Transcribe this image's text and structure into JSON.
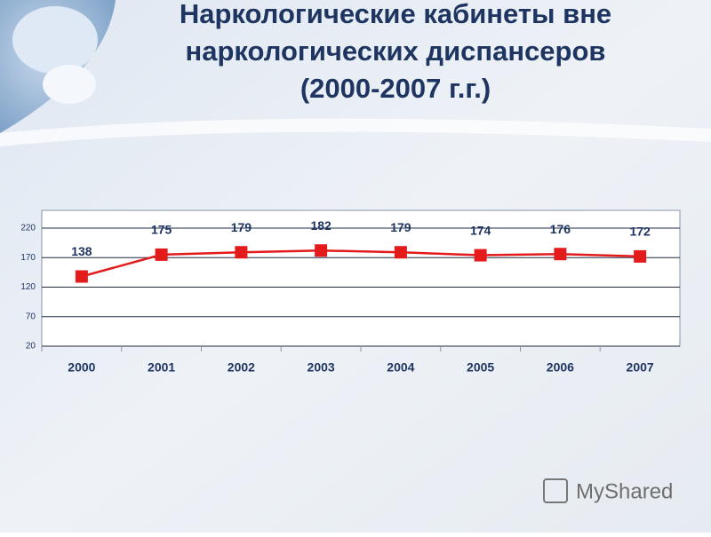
{
  "chart_data": {
    "type": "line",
    "title": [
      "Наркологические кабинеты вне",
      "наркологических диспансеров",
      "(2000-2007 г.г.)"
    ],
    "categories": [
      "2000",
      "2001",
      "2002",
      "2003",
      "2004",
      "2005",
      "2006",
      "2007"
    ],
    "series": [
      {
        "name": "Наркологические кабинеты",
        "color": "#e31b1b",
        "values": [
          138,
          175,
          179,
          182,
          179,
          174,
          176,
          172
        ]
      }
    ],
    "ylim": [
      20,
      250
    ],
    "yticks": [
      20,
      70,
      120,
      170,
      220
    ],
    "grid": true,
    "watermark": "MyShared"
  }
}
